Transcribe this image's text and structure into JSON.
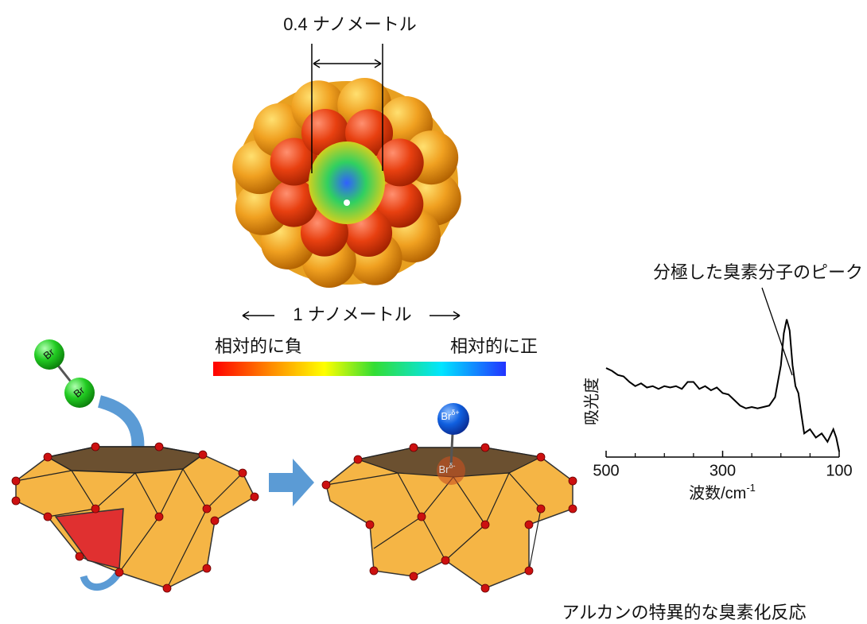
{
  "labels": {
    "pore_size": "0.4 ナノメートル",
    "diameter": "1 ナノメートル",
    "negative": "相対的に負",
    "positive": "相対的に正",
    "caption": "アルカンの特異的な臭素化反応"
  },
  "molecules": {
    "bromine_atom": "Br",
    "positive_charge": "δ+",
    "negative_charge": "δ-"
  },
  "chart_data": {
    "type": "line",
    "y_label": "吸光度",
    "x_label": "波数/cm",
    "x_label_superscript": "-1",
    "annotation": "分極した臭素分子のピーク",
    "x": [
      500,
      490,
      480,
      470,
      460,
      450,
      440,
      430,
      420,
      410,
      400,
      390,
      380,
      370,
      360,
      350,
      340,
      330,
      320,
      310,
      300,
      290,
      280,
      270,
      260,
      250,
      240,
      230,
      220,
      210,
      200,
      195,
      190,
      185,
      180,
      175,
      170,
      165,
      160,
      150,
      140,
      130,
      120,
      110,
      105,
      100
    ],
    "values": [
      64,
      62,
      59,
      58,
      54,
      51,
      53,
      50,
      51,
      49,
      51,
      50,
      51,
      49,
      54,
      54,
      49,
      51,
      48,
      50,
      46,
      45,
      41,
      37,
      35,
      36,
      35,
      36,
      37,
      43,
      66,
      89,
      99,
      91,
      66,
      51,
      46,
      31,
      17,
      20,
      14,
      17,
      11,
      20,
      14,
      4
    ],
    "color": "#000000",
    "xlim": [
      500,
      100
    ],
    "ylim": [
      0,
      100
    ],
    "xticks": [
      500,
      300,
      100
    ],
    "xminorticks": [
      450,
      400,
      350,
      250,
      200,
      150
    ]
  }
}
